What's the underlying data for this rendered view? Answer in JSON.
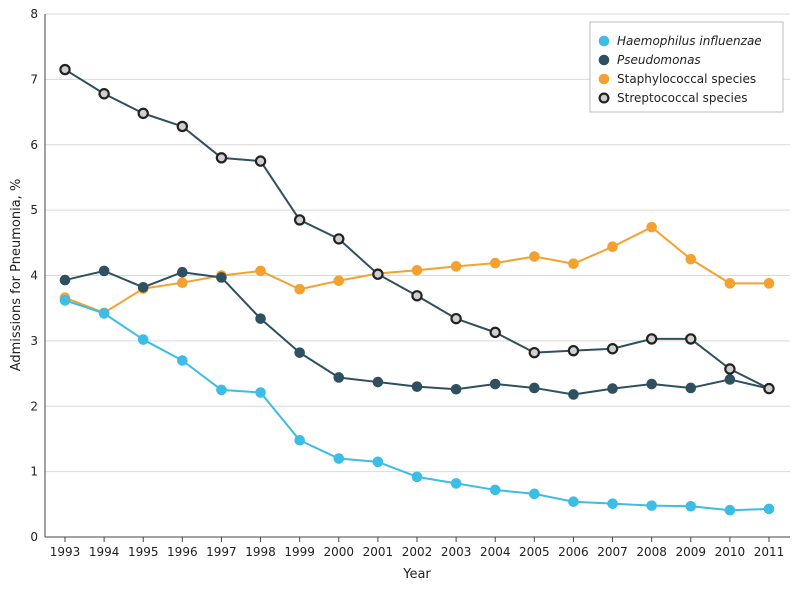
{
  "chart_data": {
    "type": "line",
    "title": "",
    "xlabel": "Year",
    "ylabel": "Admissions for Pneumonia, %",
    "ylim": [
      0,
      8
    ],
    "yticks": [
      "0",
      "1",
      "2",
      "3",
      "4",
      "5",
      "6",
      "7",
      "8"
    ],
    "grid": true,
    "legend_position": "top-right",
    "categories": [
      "1993",
      "1994",
      "1995",
      "1996",
      "1997",
      "1998",
      "1999",
      "2000",
      "2001",
      "2002",
      "2003",
      "2004",
      "2005",
      "2006",
      "2007",
      "2008",
      "2009",
      "2010",
      "2011"
    ],
    "series": [
      {
        "name": "Haemophilus influenzae",
        "italic": true,
        "color": "#3bbde6",
        "marker": "filled",
        "values": [
          3.62,
          3.42,
          3.02,
          2.7,
          2.25,
          2.21,
          1.48,
          1.2,
          1.15,
          0.92,
          0.82,
          0.72,
          0.66,
          0.54,
          0.51,
          0.48,
          0.47,
          0.41,
          0.43
        ]
      },
      {
        "name": "Pseudomonas",
        "italic": true,
        "color": "#2f5060",
        "marker": "filled",
        "values": [
          3.93,
          4.07,
          3.82,
          4.05,
          3.97,
          3.34,
          2.82,
          2.44,
          2.37,
          2.3,
          2.26,
          2.34,
          2.28,
          2.18,
          2.27,
          2.34,
          2.28,
          2.41,
          2.27
        ]
      },
      {
        "name": "Staphylococcal species",
        "italic": false,
        "color": "#f4a12f",
        "marker": "filled",
        "values": [
          3.66,
          3.43,
          3.8,
          3.89,
          4.0,
          4.07,
          3.79,
          3.92,
          4.03,
          4.08,
          4.14,
          4.19,
          4.29,
          4.18,
          4.44,
          4.74,
          4.25,
          3.88,
          3.88
        ]
      },
      {
        "name": "Streptococcal species",
        "italic": false,
        "color": "#2f5060",
        "marker": "ringed",
        "fill": "#d0d0d0",
        "values": [
          7.15,
          6.78,
          6.48,
          6.28,
          5.8,
          5.75,
          4.85,
          4.56,
          4.02,
          3.69,
          3.34,
          3.13,
          2.82,
          2.85,
          2.88,
          3.03,
          3.03,
          2.57,
          2.27
        ]
      }
    ]
  }
}
